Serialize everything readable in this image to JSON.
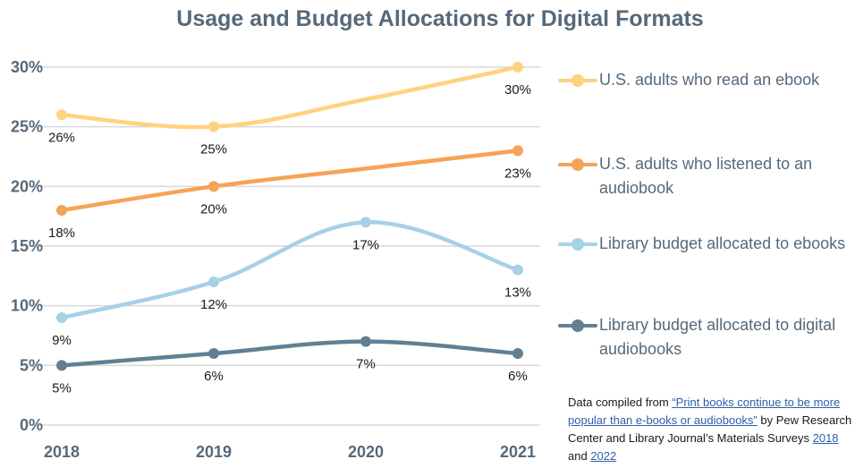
{
  "chart_data": {
    "type": "line",
    "title": "Usage and Budget Allocations for Digital Formats",
    "categories": [
      "2018",
      "2019",
      "2020",
      "2021"
    ],
    "ylim": [
      0,
      30
    ],
    "yticks": [
      "0%",
      "5%",
      "10%",
      "15%",
      "20%",
      "25%",
      "30%"
    ],
    "grid": true,
    "legend_position": "right",
    "series": [
      {
        "name": "U.S. adults who read an ebook",
        "values": [
          26,
          25,
          27.3,
          30
        ],
        "labels": [
          "26%",
          "25%",
          "",
          "30%"
        ],
        "color": "#ffd27f"
      },
      {
        "name": "U.S. adults who listened to an audiobook",
        "values": [
          18,
          20,
          21.5,
          23
        ],
        "labels": [
          "18%",
          "20%",
          "",
          "23%"
        ],
        "color": "#f5a356"
      },
      {
        "name": "Library budget allocated to ebooks",
        "values": [
          9,
          12,
          17,
          13
        ],
        "labels": [
          "9%",
          "12%",
          "17%",
          "13%"
        ],
        "color": "#a6d1e6"
      },
      {
        "name": "Library budget allocated to digital audiobooks",
        "values": [
          5,
          6,
          7,
          6
        ],
        "labels": [
          "5%",
          "6%",
          "7%",
          "6%"
        ],
        "color": "#627f93"
      }
    ]
  },
  "source": {
    "prefix": "Data compiled from ",
    "link_text": "“Print books continue to be more popular than e-books or audiobooks”",
    "middle": " by Pew Research Center and Library Journal’s Materials Surveys ",
    "link_2018": "2018",
    "and": " and ",
    "link_2022": "2022"
  }
}
